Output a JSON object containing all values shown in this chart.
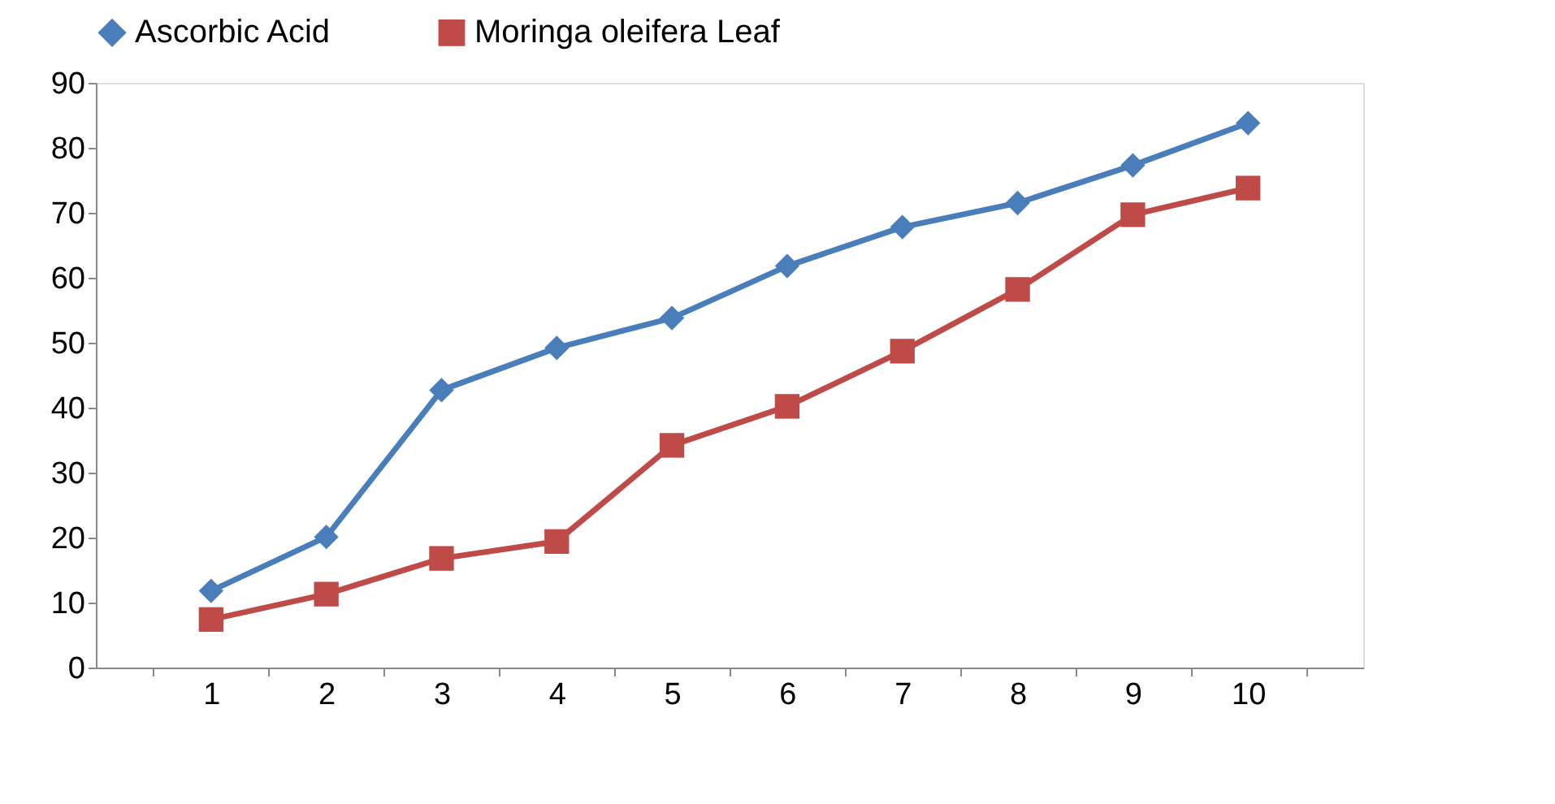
{
  "chart_data": {
    "type": "line",
    "categories": [
      "1",
      "2",
      "3",
      "4",
      "5",
      "6",
      "7",
      "8",
      "9",
      "10"
    ],
    "series": [
      {
        "name": "Ascorbic Acid",
        "color": "#4a7ebb",
        "marker": "diamond",
        "values": [
          11.8,
          20.1,
          42.7,
          49.2,
          53.8,
          61.8,
          67.8,
          71.5,
          77.3,
          83.8
        ]
      },
      {
        "name": "Moringa oleifera Leaf",
        "color": "#be4b48",
        "marker": "square",
        "values": [
          7.4,
          11.3,
          16.8,
          19.4,
          34.2,
          40.2,
          48.7,
          58.2,
          69.7,
          73.8
        ]
      }
    ],
    "ylim": [
      0,
      90
    ],
    "yticks": [
      0,
      10,
      20,
      30,
      40,
      50,
      60,
      70,
      80,
      90
    ],
    "grid": false,
    "legend": "top",
    "line_style": "solid"
  }
}
